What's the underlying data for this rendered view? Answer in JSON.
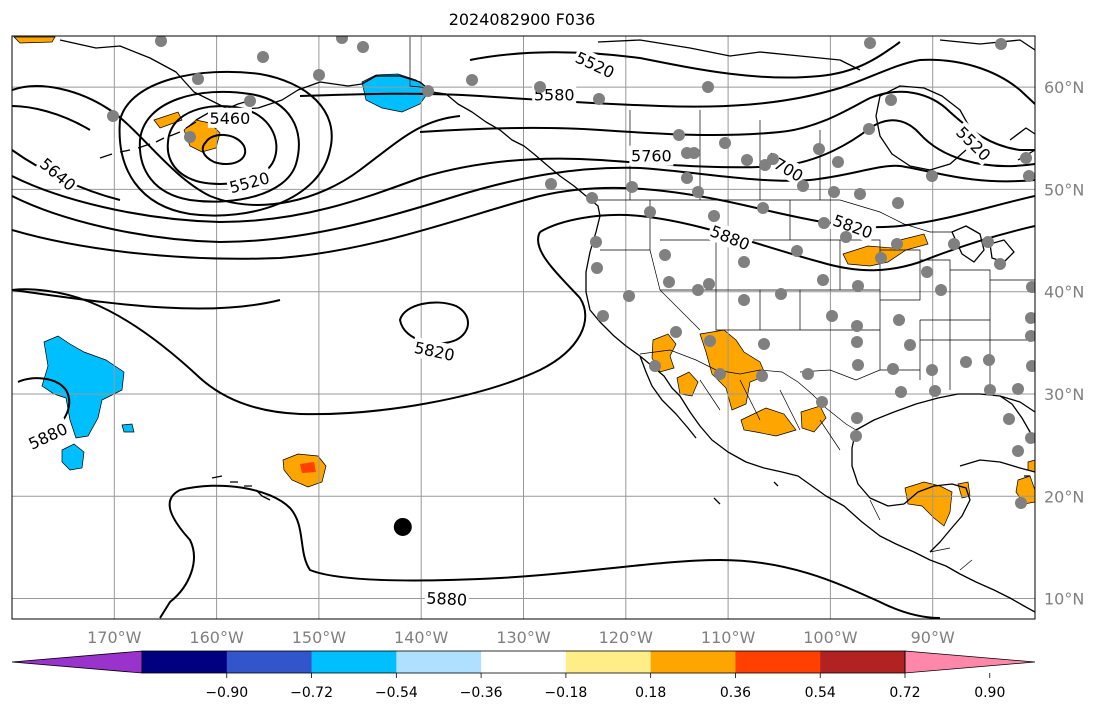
{
  "title": "2024082900 F036",
  "colors": {
    "grid": "#999999",
    "contour": "#000000",
    "station": "#808080",
    "marker": "#000000",
    "coast": "#000000"
  },
  "map": {
    "lon_range": [
      -180,
      -80
    ],
    "lat_range": [
      8,
      65
    ],
    "lon_ticks": [
      {
        "value": -170,
        "label": "170°W"
      },
      {
        "value": -160,
        "label": "160°W"
      },
      {
        "value": -150,
        "label": "150°W"
      },
      {
        "value": -140,
        "label": "140°W"
      },
      {
        "value": -130,
        "label": "130°W"
      },
      {
        "value": -120,
        "label": "120°W"
      },
      {
        "value": -110,
        "label": "110°W"
      },
      {
        "value": -100,
        "label": "100°W"
      },
      {
        "value": -90,
        "label": "90°W"
      }
    ],
    "lat_ticks": [
      {
        "value": 10,
        "label": "10°N"
      },
      {
        "value": 20,
        "label": "20°N"
      },
      {
        "value": 30,
        "label": "30°N"
      },
      {
        "value": 40,
        "label": "40°N"
      },
      {
        "value": 50,
        "label": "50°N"
      },
      {
        "value": 60,
        "label": "60°N"
      }
    ],
    "contour_labels": [
      {
        "text": "5520",
        "lon": -123,
        "lat": 62.2,
        "rot": 25
      },
      {
        "text": "5580",
        "lon": -127,
        "lat": 59.3,
        "rot": 0
      },
      {
        "text": "5460",
        "lon": -158.7,
        "lat": 57.0,
        "rot": 0
      },
      {
        "text": "5640",
        "lon": -175.5,
        "lat": 51.5,
        "rot": 40
      },
      {
        "text": "5520",
        "lon": -156.8,
        "lat": 50.7,
        "rot": -15
      },
      {
        "text": "5760",
        "lon": -117.5,
        "lat": 53.3,
        "rot": 0
      },
      {
        "text": "5700",
        "lon": -104.5,
        "lat": 52.2,
        "rot": 30
      },
      {
        "text": "5820",
        "lon": -97.8,
        "lat": 46.4,
        "rot": 20
      },
      {
        "text": "5880",
        "lon": -109.8,
        "lat": 45.3,
        "rot": 22
      },
      {
        "text": "5520",
        "lon": -86.0,
        "lat": 54.5,
        "rot": 45
      },
      {
        "text": "5820",
        "lon": -138.7,
        "lat": 34.2,
        "rot": 12
      },
      {
        "text": "5880",
        "lon": -176.5,
        "lat": 25.9,
        "rot": -25
      },
      {
        "text": "5880",
        "lon": -137.5,
        "lat": 10.0,
        "rot": 3
      }
    ],
    "marker": {
      "lon": -141.8,
      "lat": 17.0
    }
  },
  "colorbar": {
    "colors": [
      "#9933cc",
      "#000080",
      "#3355cc",
      "#00bfff",
      "#b0e0ff",
      "#ffffff",
      "#ffee88",
      "#ffa500",
      "#ff4000",
      "#b22222",
      "#ff88aa"
    ],
    "ticks": [
      "−0.90",
      "−0.72",
      "−0.54",
      "−0.36",
      "−0.18",
      "0.18",
      "0.36",
      "0.54",
      "0.72",
      "0.90"
    ]
  }
}
